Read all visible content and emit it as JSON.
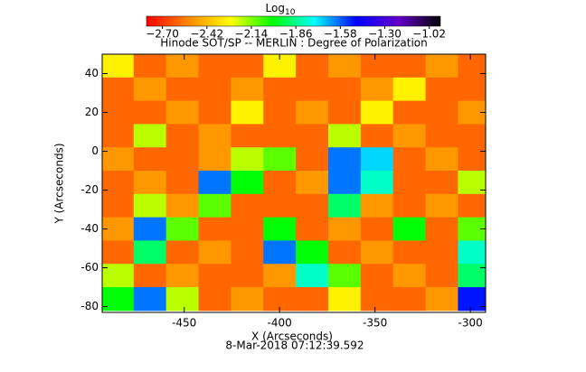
{
  "chart_data": {
    "type": "heatmap",
    "title": "Hinode SOT/SP -- MERLIN : Degree of Polarization",
    "colorbar_title": "Log",
    "colorbar_title_sub": "10",
    "xlabel": "X (Arcseconds)",
    "ylabel": "Y (Arcseconds)",
    "annotation": "8-Mar-2018 07:12:39.592",
    "xlim": [
      -493,
      -292
    ],
    "ylim": [
      -83,
      50
    ],
    "xticks": [
      -450,
      -400,
      -350,
      -300
    ],
    "yticks": [
      -80,
      -60,
      -40,
      -20,
      0,
      20,
      40
    ],
    "clim": [
      -2.8,
      -0.95
    ],
    "cticks": [
      {
        "value": -2.7,
        "label": "−2.70"
      },
      {
        "value": -2.42,
        "label": "−2.42"
      },
      {
        "value": -2.14,
        "label": "−2.14"
      },
      {
        "value": -1.86,
        "label": "−1.86"
      },
      {
        "value": -1.58,
        "label": "−1.58"
      },
      {
        "value": -1.3,
        "label": "−1.30"
      },
      {
        "value": -1.02,
        "label": "−1.02"
      }
    ],
    "colorscale": [
      "#ff0000",
      "#ff8800",
      "#ffff00",
      "#00ff00",
      "#00ffff",
      "#0000ff",
      "#6600cc",
      "#000000"
    ],
    "x": [
      -485,
      -468,
      -451,
      -434,
      -417,
      -400,
      -383,
      -366,
      -349,
      -332,
      -315,
      -298
    ],
    "y": [
      44,
      32,
      20,
      8,
      -4,
      -16,
      -28,
      -40,
      -52,
      -64,
      -76
    ],
    "z": [
      [
        -2.3,
        -2.6,
        -2.5,
        -2.6,
        -2.6,
        -2.3,
        -2.6,
        -2.5,
        -2.6,
        -2.6,
        -2.5,
        -2.6
      ],
      [
        -2.6,
        -2.5,
        -2.6,
        -2.6,
        -2.5,
        -2.6,
        -2.6,
        -2.6,
        -2.5,
        -2.3,
        -2.6,
        -2.6
      ],
      [
        -2.6,
        -2.6,
        -2.5,
        -2.6,
        -2.3,
        -2.6,
        -2.5,
        -2.6,
        -2.3,
        -2.6,
        -2.6,
        -2.5
      ],
      [
        -2.6,
        -2.2,
        -2.6,
        -2.5,
        -2.6,
        -2.6,
        -2.6,
        -2.2,
        -2.6,
        -2.5,
        -2.6,
        -2.6
      ],
      [
        -2.5,
        -2.6,
        -2.6,
        -2.5,
        -2.2,
        -2.1,
        -2.6,
        -1.6,
        -1.7,
        -2.6,
        -2.5,
        -2.6
      ],
      [
        -2.6,
        -2.5,
        -2.6,
        -1.6,
        -2.0,
        -2.6,
        -2.5,
        -1.6,
        -1.8,
        -2.6,
        -2.6,
        -2.2
      ],
      [
        -2.6,
        -2.2,
        -2.5,
        -2.1,
        -2.6,
        -2.6,
        -2.6,
        -1.9,
        -2.5,
        -2.6,
        -2.5,
        -2.6
      ],
      [
        -2.5,
        -1.6,
        -2.1,
        -2.6,
        -2.6,
        -2.0,
        -2.6,
        -2.5,
        -2.6,
        -2.0,
        -2.6,
        -2.1
      ],
      [
        -2.6,
        -1.9,
        -2.6,
        -2.5,
        -2.6,
        -1.6,
        -2.0,
        -2.6,
        -2.5,
        -2.6,
        -2.6,
        -1.8
      ],
      [
        -2.2,
        -2.6,
        -2.5,
        -2.6,
        -2.6,
        -2.5,
        -1.8,
        -2.1,
        -2.6,
        -2.5,
        -2.6,
        -1.9
      ],
      [
        -2.0,
        -1.6,
        -2.2,
        -2.6,
        -2.5,
        -2.6,
        -2.6,
        -2.3,
        -2.6,
        -2.6,
        -2.5,
        -1.5
      ]
    ]
  }
}
